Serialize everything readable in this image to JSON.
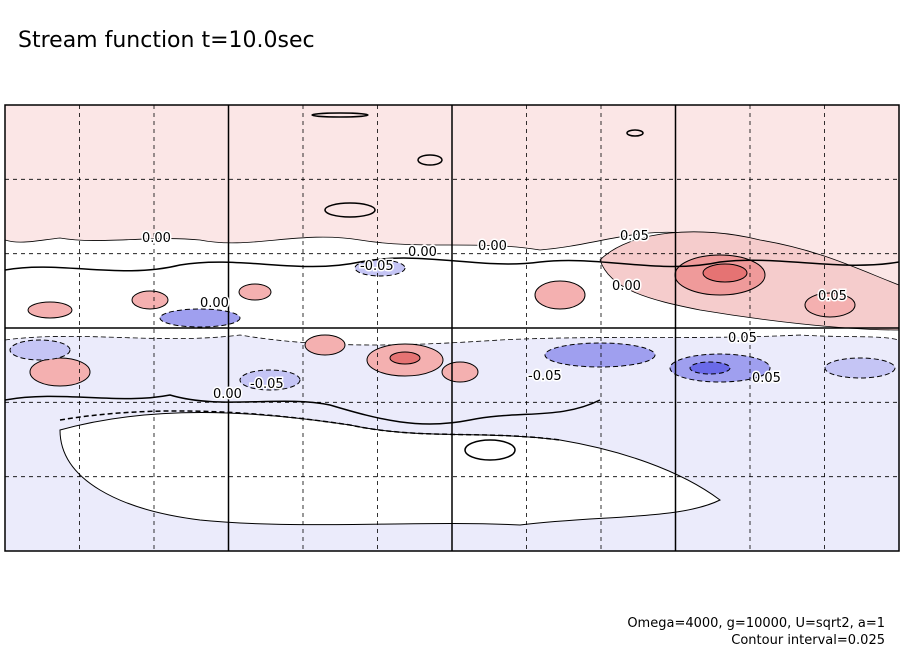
{
  "title": "Stream function t=10.0sec",
  "contour_labels": [
    "0.00",
    "0.00",
    "0.00",
    "0.05",
    "0.00",
    "0.00",
    "0.05",
    "-0.05",
    "0.05",
    "0.00",
    "-0.05",
    "0.05",
    "-0.05"
  ],
  "notes": [
    "Omega=4000, g=10000, U=sqrt2, a=1",
    "Contour interval=0.025"
  ]
}
